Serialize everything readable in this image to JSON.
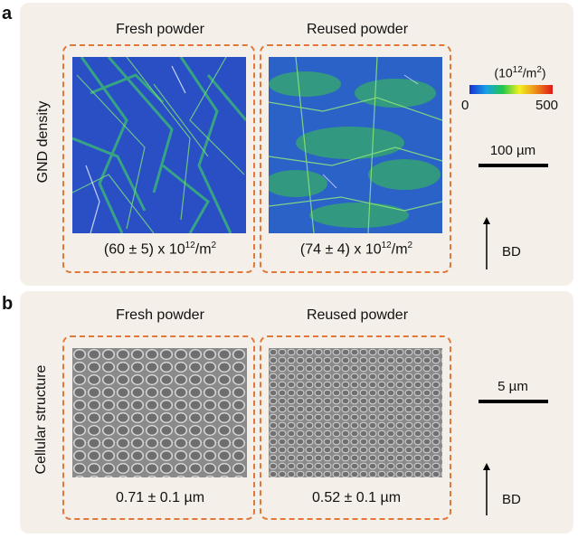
{
  "panel_a": {
    "label": "a",
    "row_label": "GND density",
    "col1_title": "Fresh powder",
    "col2_title": "Reused powder",
    "val1_prefix": "(60 ± 5) x 10",
    "val1_exp": "12",
    "val1_suffix": "/m",
    "val1_sup2": "2",
    "val2_prefix": "(74 ± 4) x 10",
    "val2_exp": "12",
    "val2_suffix": "/m",
    "val2_sup2": "2",
    "colorbar_unit_pre": "(10",
    "colorbar_unit_exp": "12",
    "colorbar_unit_mid": "/m",
    "colorbar_unit_sup2": "2",
    "colorbar_unit_post": ")",
    "colorbar_min": "0",
    "colorbar_max": "500",
    "scale_label": "100 µm",
    "direction_label": "BD"
  },
  "panel_b": {
    "label": "b",
    "row_label": "Cellular structure",
    "col1_title": "Fresh powder",
    "col2_title": "Reused powder",
    "val1": "0.71 ± 0.1 µm",
    "val2": "0.52 ± 0.1 µm",
    "scale_label": "5 µm",
    "direction_label": "BD"
  },
  "colors": {
    "panel_bg": "#f4efe8",
    "dash_border": "#e0783a",
    "colorbar": [
      "#1a2fd0",
      "#18a0e8",
      "#22c74a",
      "#f2f020",
      "#ee8a1a",
      "#e01818"
    ]
  }
}
